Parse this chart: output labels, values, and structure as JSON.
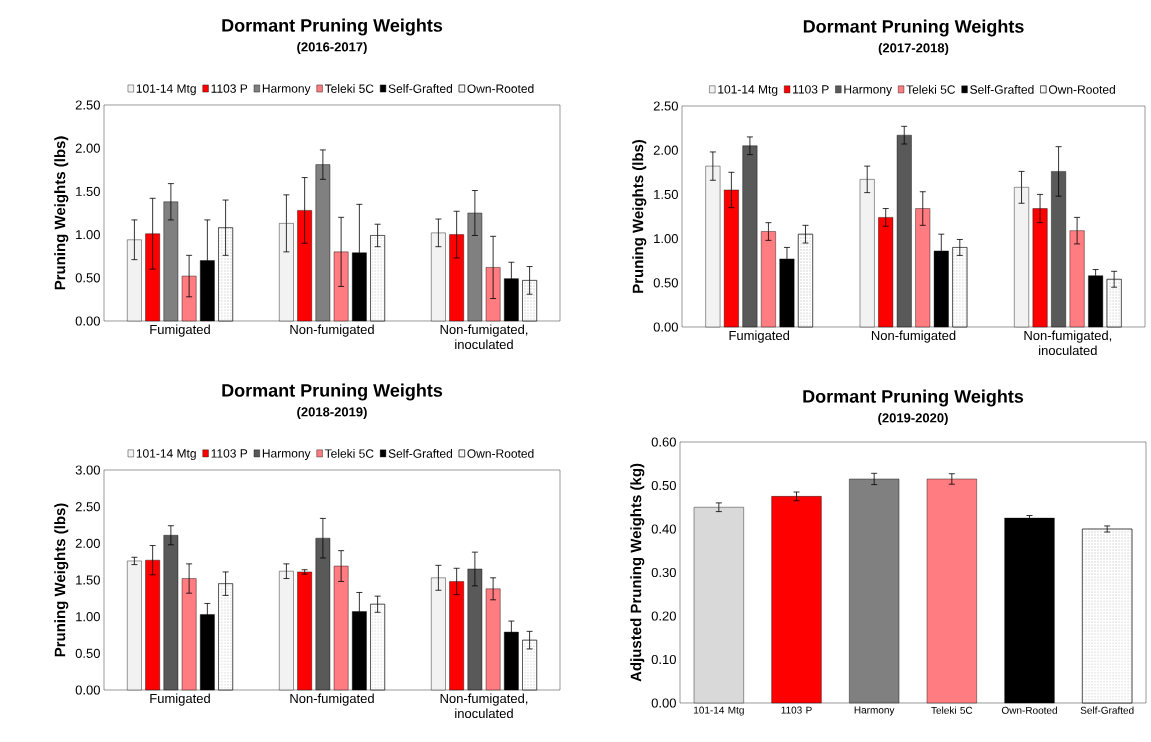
{
  "chart_data": [
    {
      "type": "bar",
      "title": "Dormant Pruning Weights",
      "subtitle": "(2016-2017)",
      "ylabel": "Pruning Weights (lbs)",
      "categories": [
        "Fumigated",
        "Non-fumigated",
        "Non-fumigated, inoculated"
      ],
      "ylim": [
        0,
        2.5
      ],
      "yticks": [
        {
          "value": 0,
          "label": "0.00"
        },
        {
          "value": 0.5,
          "label": "0.50"
        },
        {
          "value": 1,
          "label": "1.00"
        },
        {
          "value": 1.5,
          "label": "1.50"
        },
        {
          "value": 2,
          "label": "2.00"
        },
        {
          "value": 2.5,
          "label": "2.50"
        }
      ],
      "legend": "top",
      "series": [
        {
          "name": "101-14 Mtg",
          "color": "#f2f2f2",
          "values": [
            0.94,
            1.13,
            1.02
          ],
          "errors": [
            0.23,
            0.33,
            0.16
          ]
        },
        {
          "name": "1103 P",
          "color": "#ff0000",
          "values": [
            1.01,
            1.28,
            1.0
          ],
          "errors": [
            0.41,
            0.38,
            0.27
          ]
        },
        {
          "name": "Harmony",
          "color": "#808080",
          "values": [
            1.38,
            1.81,
            1.25
          ],
          "errors": [
            0.21,
            0.17,
            0.26
          ]
        },
        {
          "name": "Teleki 5C",
          "color": "#ff7c80",
          "values": [
            0.52,
            0.8,
            0.62
          ],
          "errors": [
            0.24,
            0.4,
            0.36
          ]
        },
        {
          "name": "Self-Grafted",
          "color": "#000000",
          "values": [
            0.7,
            0.79,
            0.49
          ],
          "errors": [
            0.47,
            0.56,
            0.19
          ]
        },
        {
          "name": "Own-Rooted",
          "color": "#ffffff",
          "values": [
            1.08,
            0.99,
            0.47
          ],
          "errors": [
            0.32,
            0.13,
            0.16
          ]
        }
      ]
    },
    {
      "type": "bar",
      "title": "Dormant Pruning Weights",
      "subtitle": "(2017-2018)",
      "ylabel": "Pruning Weights (lbs)",
      "categories": [
        "Fumigated",
        "Non-fumigated",
        "Non-fumigated, inoculated"
      ],
      "ylim": [
        0,
        2.5
      ],
      "yticks": [
        {
          "value": 0,
          "label": "0.00"
        },
        {
          "value": 0.5,
          "label": "0.50"
        },
        {
          "value": 1,
          "label": "1.00"
        },
        {
          "value": 1.5,
          "label": "1.50"
        },
        {
          "value": 2,
          "label": "2.00"
        },
        {
          "value": 2.5,
          "label": "2.50"
        }
      ],
      "legend": "top",
      "series": [
        {
          "name": "101-14 Mtg",
          "color": "#f2f2f2",
          "values": [
            1.82,
            1.67,
            1.58
          ],
          "errors": [
            0.16,
            0.15,
            0.18
          ]
        },
        {
          "name": "1103 P",
          "color": "#ff0000",
          "values": [
            1.55,
            1.24,
            1.34
          ],
          "errors": [
            0.2,
            0.1,
            0.16
          ]
        },
        {
          "name": "Harmony",
          "color": "#595959",
          "values": [
            2.05,
            2.17,
            1.76
          ],
          "errors": [
            0.1,
            0.1,
            0.28
          ]
        },
        {
          "name": "Teleki 5C",
          "color": "#ff7c80",
          "values": [
            1.08,
            1.34,
            1.09
          ],
          "errors": [
            0.1,
            0.19,
            0.15
          ]
        },
        {
          "name": "Self-Grafted",
          "color": "#000000",
          "values": [
            0.77,
            0.86,
            0.58
          ],
          "errors": [
            0.13,
            0.19,
            0.07
          ]
        },
        {
          "name": "Own-Rooted",
          "color": "#ffffff",
          "values": [
            1.05,
            0.9,
            0.54
          ],
          "errors": [
            0.1,
            0.09,
            0.09
          ]
        }
      ]
    },
    {
      "type": "bar",
      "title": "Dormant Pruning Weights",
      "subtitle": "(2018-2019)",
      "ylabel": "Pruning Weights (lbs)",
      "categories": [
        "Fumigated",
        "Non-fumigated",
        "Non-fumigated, inoculated"
      ],
      "ylim": [
        0,
        3
      ],
      "yticks": [
        {
          "value": 0,
          "label": "0.00"
        },
        {
          "value": 0.5,
          "label": "0.50"
        },
        {
          "value": 1,
          "label": "1.00"
        },
        {
          "value": 1.5,
          "label": "1.50"
        },
        {
          "value": 2,
          "label": "2.00"
        },
        {
          "value": 2.5,
          "label": "2.50"
        },
        {
          "value": 3,
          "label": "3.00"
        }
      ],
      "legend": "top",
      "series": [
        {
          "name": "101-14 Mtg",
          "color": "#f2f2f2",
          "values": [
            1.76,
            1.62,
            1.53
          ],
          "errors": [
            0.05,
            0.1,
            0.17
          ]
        },
        {
          "name": "1103 P",
          "color": "#ff0000",
          "values": [
            1.77,
            1.61,
            1.48
          ],
          "errors": [
            0.2,
            0.03,
            0.18
          ]
        },
        {
          "name": "Harmony",
          "color": "#595959",
          "values": [
            2.11,
            2.07,
            1.65
          ],
          "errors": [
            0.13,
            0.27,
            0.23
          ]
        },
        {
          "name": "Teleki 5C",
          "color": "#ff7c80",
          "values": [
            1.52,
            1.69,
            1.38
          ],
          "errors": [
            0.2,
            0.21,
            0.15
          ]
        },
        {
          "name": "Self-Grafted",
          "color": "#000000",
          "values": [
            1.03,
            1.07,
            0.79
          ],
          "errors": [
            0.15,
            0.26,
            0.15
          ]
        },
        {
          "name": "Own-Rooted",
          "color": "#ffffff",
          "values": [
            1.45,
            1.17,
            0.68
          ],
          "errors": [
            0.16,
            0.11,
            0.12
          ]
        }
      ]
    },
    {
      "type": "bar",
      "title": "Dormant Pruning Weights",
      "subtitle": "(2019-2020)",
      "ylabel": "Adjusted  Pruning Weights (kg)",
      "categories": [
        "101-14 Mtg",
        "1103 P",
        "Harmony",
        "Teleki 5C",
        "Own-Rooted",
        "Self-Grafted"
      ],
      "ylim": [
        0,
        0.6
      ],
      "yticks": [
        {
          "value": 0,
          "label": "0.00"
        },
        {
          "value": 0.1,
          "label": "0.10"
        },
        {
          "value": 0.2,
          "label": "0.20"
        },
        {
          "value": 0.3,
          "label": "0.30"
        },
        {
          "value": 0.4,
          "label": "0.40"
        },
        {
          "value": 0.5,
          "label": "0.50"
        },
        {
          "value": 0.6,
          "label": "0.60"
        }
      ],
      "values": [
        0.45,
        0.475,
        0.515,
        0.515,
        0.425,
        0.4
      ],
      "errors": [
        0.01,
        0.01,
        0.013,
        0.012,
        0.006,
        0.007
      ],
      "colors": [
        "#d9d9d9",
        "#ff0000",
        "#808080",
        "#ff7c80",
        "#000000",
        "#ffffff"
      ]
    }
  ]
}
